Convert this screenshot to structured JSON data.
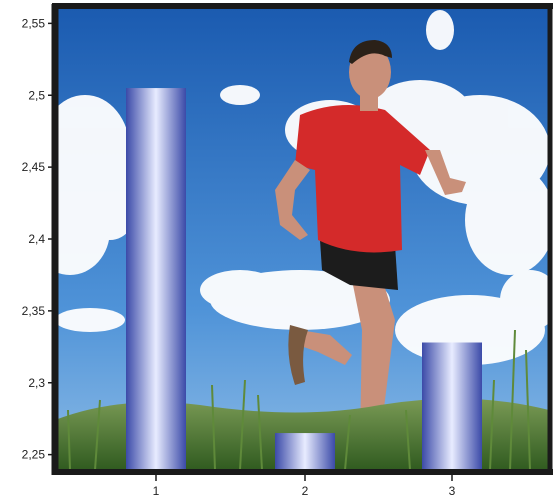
{
  "chart_data": {
    "type": "bar",
    "title": "",
    "xlabel": "",
    "ylabel": "",
    "categories": [
      "1",
      "2",
      "3"
    ],
    "values": [
      2.505,
      2.265,
      2.328
    ],
    "ylim": [
      2.24,
      2.56
    ],
    "yticks": [
      2.25,
      2.3,
      2.35,
      2.4,
      2.45,
      2.5,
      2.55
    ],
    "ytick_labels": [
      "2,25",
      "2,3",
      "2,35",
      "2,4",
      "2,45",
      "2,5",
      "2,55"
    ],
    "grid": false,
    "background": "photo of a man running on a grass meadow under a blue sky with white clouds",
    "colors": {
      "bar_dark": "#3b4aa8",
      "bar_light": "#e8ecff",
      "sky_top": "#1f63b8",
      "sky_bottom": "#5fa0e0",
      "grass": "#3f6b2a",
      "shirt": "#d42a2a",
      "frame": "#1a1a1a"
    }
  }
}
